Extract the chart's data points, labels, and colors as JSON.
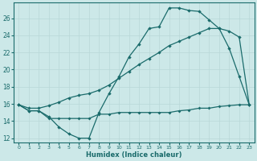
{
  "bg_color": "#cce8e8",
  "line_color": "#1a6b6b",
  "grid_color": "#b8d8d8",
  "xlabel": "Humidex (Indice chaleur)",
  "xlim": [
    -0.5,
    23.5
  ],
  "ylim": [
    11.5,
    27.8
  ],
  "yticks": [
    12,
    14,
    16,
    18,
    20,
    22,
    24,
    26
  ],
  "xticks": [
    0,
    1,
    2,
    3,
    4,
    5,
    6,
    7,
    8,
    9,
    10,
    11,
    12,
    13,
    14,
    15,
    16,
    17,
    18,
    19,
    20,
    21,
    22,
    23
  ],
  "line1_x": [
    0,
    1,
    2,
    3,
    4,
    5,
    6,
    7,
    8,
    9,
    10,
    11,
    12,
    13,
    14,
    15,
    16,
    17,
    18,
    19,
    20,
    21,
    22,
    23
  ],
  "line1_y": [
    15.9,
    15.2,
    15.2,
    14.5,
    13.3,
    12.5,
    12.0,
    12.0,
    15.0,
    17.2,
    19.2,
    21.5,
    23.0,
    24.8,
    25.0,
    27.2,
    27.2,
    26.9,
    26.8,
    25.8,
    24.8,
    22.5,
    19.2,
    15.9
  ],
  "line2_x": [
    0,
    1,
    2,
    3,
    4,
    5,
    6,
    7,
    8,
    9,
    10,
    11,
    12,
    13,
    14,
    15,
    16,
    17,
    18,
    19,
    20,
    21,
    22,
    23
  ],
  "line2_y": [
    15.9,
    15.5,
    15.5,
    15.8,
    16.2,
    16.7,
    17.0,
    17.2,
    17.6,
    18.2,
    19.0,
    19.8,
    20.6,
    21.3,
    22.0,
    22.8,
    23.3,
    23.8,
    24.3,
    24.8,
    24.8,
    24.5,
    23.8,
    15.9
  ],
  "line3_x": [
    0,
    1,
    2,
    3,
    4,
    5,
    6,
    7,
    8,
    9,
    10,
    11,
    12,
    13,
    14,
    15,
    16,
    17,
    18,
    19,
    20,
    21,
    22,
    23
  ],
  "line3_y": [
    15.9,
    15.2,
    15.2,
    14.3,
    14.3,
    14.3,
    14.3,
    14.3,
    14.8,
    14.8,
    15.0,
    15.0,
    15.0,
    15.0,
    15.0,
    15.0,
    15.2,
    15.3,
    15.5,
    15.5,
    15.7,
    15.8,
    15.9,
    15.9
  ]
}
